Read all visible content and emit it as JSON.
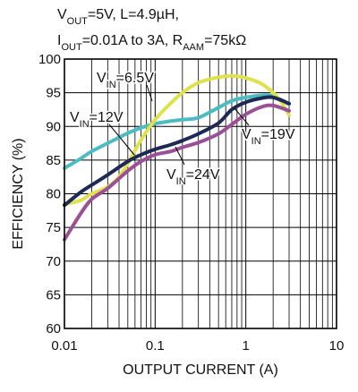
{
  "chart_data": {
    "type": "line",
    "title_lines": [
      {
        "parts": [
          {
            "t": "V"
          },
          {
            "t": "OUT",
            "sub": true
          },
          {
            "t": "=5V, L=4.9µH,"
          }
        ]
      },
      {
        "parts": [
          {
            "t": "I"
          },
          {
            "t": "OUT",
            "sub": true
          },
          {
            "t": "=0.01A to 3A, R"
          },
          {
            "t": "AAM",
            "sub": true
          },
          {
            "t": "=75kΩ"
          }
        ]
      }
    ],
    "xlabel": "OUTPUT CURRENT (A)",
    "ylabel": "EFFICIENCY (%)",
    "x_scale": "log",
    "xlim": [
      0.01,
      10
    ],
    "ylim": [
      60,
      100
    ],
    "x_ticks": [
      0.01,
      0.1,
      1,
      10
    ],
    "x_tick_labels": [
      "0.01",
      "0.1",
      "1",
      "10"
    ],
    "y_ticks": [
      60,
      65,
      70,
      75,
      80,
      85,
      90,
      95,
      100
    ],
    "y_tick_labels": [
      "60",
      "65",
      "70",
      "75",
      "80",
      "85",
      "90",
      "95",
      "100"
    ],
    "grid": true,
    "series": [
      {
        "key": "vin12",
        "color": "#4bbcc1",
        "x": [
          0.01,
          0.015,
          0.02,
          0.03,
          0.05,
          0.07,
          0.1,
          0.15,
          0.2,
          0.3,
          0.5,
          0.7,
          1.0,
          1.5,
          2.0,
          3.0
        ],
        "y": [
          83.8,
          85.2,
          86.3,
          87.5,
          89.0,
          89.8,
          90.4,
          90.8,
          91.0,
          91.3,
          92.8,
          93.8,
          94.3,
          94.6,
          94.5,
          93.3
        ]
      },
      {
        "key": "vin6_5",
        "color": "#dfe24a",
        "x": [
          0.01,
          0.015,
          0.02,
          0.03,
          0.04,
          0.05,
          0.07,
          0.1,
          0.15,
          0.2,
          0.3,
          0.5,
          0.7,
          1.0,
          1.5,
          2.0,
          2.5,
          3.0
        ],
        "y": [
          78.5,
          79.0,
          80.0,
          81.0,
          82.5,
          84.5,
          88.0,
          91.0,
          93.5,
          95.0,
          96.5,
          97.3,
          97.5,
          97.2,
          96.3,
          95.0,
          93.5,
          91.7
        ]
      },
      {
        "key": "vin19",
        "color": "#1e2a55",
        "x": [
          0.01,
          0.015,
          0.02,
          0.03,
          0.05,
          0.07,
          0.1,
          0.15,
          0.2,
          0.3,
          0.5,
          0.7,
          1.0,
          1.5,
          2.0,
          3.0
        ],
        "y": [
          78.3,
          80.2,
          81.3,
          82.8,
          84.8,
          85.8,
          86.6,
          87.3,
          87.9,
          88.9,
          90.5,
          92.5,
          93.6,
          94.2,
          94.3,
          93.4
        ]
      },
      {
        "key": "vin24",
        "color": "#9c4f96",
        "x": [
          0.01,
          0.015,
          0.02,
          0.03,
          0.05,
          0.07,
          0.1,
          0.15,
          0.2,
          0.3,
          0.5,
          0.7,
          1.0,
          1.5,
          2.0,
          3.0
        ],
        "y": [
          73.2,
          77.0,
          79.2,
          80.8,
          83.4,
          84.8,
          85.8,
          86.3,
          86.9,
          87.6,
          88.9,
          90.3,
          91.8,
          92.9,
          93.1,
          92.3
        ]
      }
    ],
    "annotations": [
      {
        "key": "vin6_5",
        "parts": [
          {
            "t": "V"
          },
          {
            "t": "IN",
            "sub": true
          },
          {
            "t": "=6.5V"
          }
        ]
      },
      {
        "key": "vin12",
        "parts": [
          {
            "t": "V"
          },
          {
            "t": "IN",
            "sub": true
          },
          {
            "t": "=12V"
          }
        ]
      },
      {
        "key": "vin19",
        "parts": [
          {
            "t": "V"
          },
          {
            "t": "IN",
            "sub": true
          },
          {
            "t": "=19V"
          }
        ]
      },
      {
        "key": "vin24",
        "parts": [
          {
            "t": "V"
          },
          {
            "t": "IN",
            "sub": true
          },
          {
            "t": "=24V"
          }
        ]
      }
    ]
  }
}
